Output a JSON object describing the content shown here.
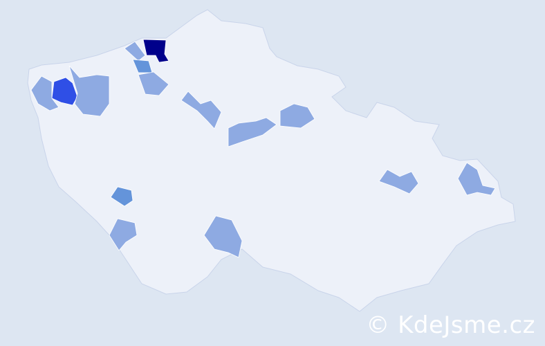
{
  "map": {
    "colors": {
      "background": "#dde6f2",
      "base": "#edf1f9",
      "level_1": "#8eaae2",
      "level_2": "#6494da",
      "level_3": "#2f4fe6",
      "level_4": "#00008b"
    }
  },
  "watermark": {
    "text": "© KdeJsme.cz"
  }
}
